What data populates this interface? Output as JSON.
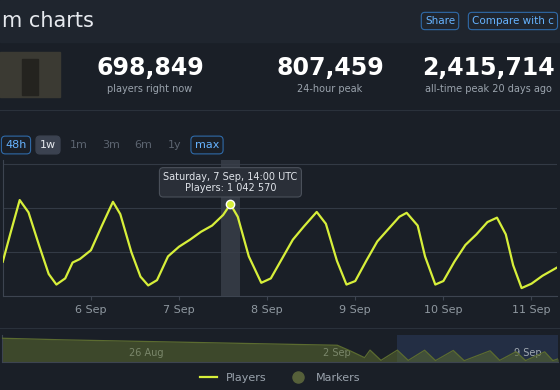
{
  "header": {
    "title": "m charts",
    "buttons": [
      "Share",
      "Compare with c"
    ]
  },
  "stats": [
    {
      "value": "698,849",
      "label": "players right now"
    },
    {
      "value": "807,459",
      "label": "24-hour peak"
    },
    {
      "value": "2,415,714",
      "label": "all-time peak 20 days ago"
    }
  ],
  "range_buttons": [
    "48h",
    "1w",
    "1m",
    "3m",
    "6m",
    "1y",
    "max"
  ],
  "chart_data": [
    {
      "type": "line",
      "x": [
        0,
        2,
        4.6,
        7,
        10,
        12.5,
        14.6,
        17,
        19,
        21,
        24,
        27,
        30,
        32,
        35,
        37.5,
        39.6,
        42,
        45,
        48,
        51,
        54,
        57,
        60,
        62,
        64,
        67,
        70.4,
        73,
        76,
        79,
        82,
        85.5,
        88,
        91,
        93.6,
        96,
        99,
        102,
        105,
        108,
        110,
        113,
        115,
        117.8,
        120,
        123,
        126,
        129,
        132,
        134.6,
        137,
        139,
        141.3,
        144,
        147,
        150.8
      ],
      "xlim": [
        0,
        151
      ],
      "xticks": [
        {
          "value": 24,
          "label": "6 Sep"
        },
        {
          "value": 48,
          "label": "7 Sep"
        },
        {
          "value": 72,
          "label": "8 Sep"
        },
        {
          "value": 96,
          "label": "9 Sep"
        },
        {
          "value": 120,
          "label": "10 Sep"
        },
        {
          "value": 144,
          "label": "11 Sep"
        }
      ],
      "ylim": [
        0,
        1545000
      ],
      "yticks": [
        0,
        500000,
        1000000,
        1500000
      ],
      "grid": true,
      "tick_labels": "x",
      "legend": "lower center",
      "series": [
        {
          "name": "Players",
          "color": "#d7ef3a",
          "values": [
            390000,
            700000,
            1090000,
            950000,
            560000,
            250000,
            130000,
            200000,
            380000,
            420000,
            520000,
            800000,
            1070000,
            930000,
            500000,
            220000,
            120000,
            180000,
            450000,
            560000,
            640000,
            730000,
            800000,
            920000,
            1042570,
            900000,
            450000,
            150000,
            200000,
            420000,
            640000,
            790000,
            955000,
            820000,
            400000,
            130000,
            170000,
            400000,
            620000,
            760000,
            900000,
            945000,
            800000,
            450000,
            130000,
            170000,
            390000,
            580000,
            700000,
            840000,
            890000,
            700000,
            350000,
            90000,
            140000,
            230000,
            320000
          ]
        },
        {
          "name": "Markers",
          "color": "#56603a",
          "marker": "circle",
          "line_style": "none",
          "values": [
            null,
            null,
            null,
            null,
            null,
            null,
            null,
            null,
            null,
            null,
            null,
            null,
            null,
            null,
            null,
            null,
            null,
            null,
            null,
            null,
            null,
            null,
            null,
            null,
            null,
            null,
            null,
            null,
            null,
            null,
            null,
            null,
            null,
            null,
            null,
            null,
            null,
            null,
            null,
            null,
            null,
            null,
            null,
            null,
            null,
            null,
            null,
            null,
            null,
            null,
            null,
            null,
            null,
            null,
            null,
            null,
            null
          ]
        }
      ],
      "annotations": [
        {
          "x": 62,
          "y": 1042570,
          "title": "Saturday, 7 Sep, 14:00 UTC",
          "text": "Players: 1 042 570"
        }
      ]
    },
    {
      "type": "area",
      "x": [
        -5.3,
        -3,
        0,
        3,
        6,
        7,
        7.5,
        8,
        8.2,
        8.6,
        9.2,
        9.6,
        10.2,
        10.6,
        11.25,
        11.65,
        12.6,
        12.95,
        13.55,
        13.9,
        14.6,
        14.9,
        15.1
      ],
      "values": [
        2200000,
        2050000,
        1900000,
        1750000,
        1600000,
        1550000,
        1000000,
        400000,
        1100000,
        150000,
        1100000,
        150000,
        1090000,
        130000,
        1070000,
        120000,
        1040000,
        150000,
        955000,
        130000,
        945000,
        130000,
        300000
      ],
      "color": "#5b6b30",
      "xlim": [
        -5.3,
        15.1
      ],
      "xticks": [
        {
          "value": 0,
          "label": "26 Aug"
        },
        {
          "value": 7,
          "label": "2 Sep"
        },
        {
          "value": 14,
          "label": "9 Sep"
        }
      ],
      "ylim": [
        0,
        2500000
      ],
      "yticks": [],
      "tick_labels": "x",
      "selection": [
        9.2,
        15.1
      ]
    }
  ]
}
